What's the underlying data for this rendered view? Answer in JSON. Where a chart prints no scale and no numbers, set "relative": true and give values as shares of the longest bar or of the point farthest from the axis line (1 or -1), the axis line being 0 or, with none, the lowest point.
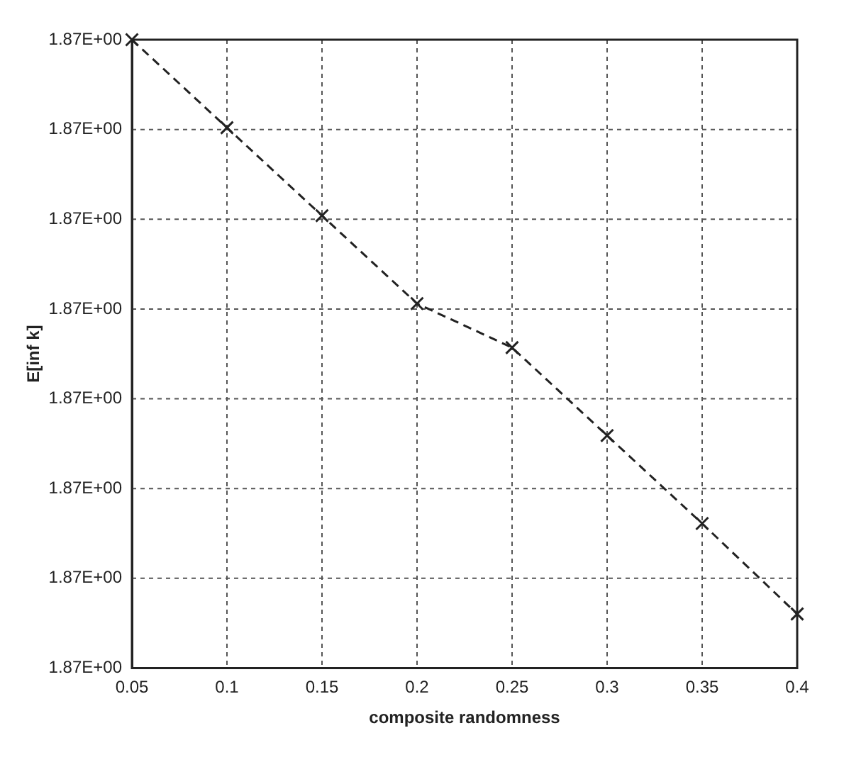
{
  "chart_data": {
    "type": "line",
    "relative": true,
    "xlabel": "composite randomness",
    "ylabel": "E[inf k]",
    "x": [
      0.05,
      0.1,
      0.15,
      0.2,
      0.25,
      0.3,
      0.35,
      0.4
    ],
    "series": [
      {
        "color": "#222222",
        "values": [
          1,
          0.86,
          0.72,
          0.58,
          0.51,
          0.37,
          0.23,
          0.086
        ]
      }
    ],
    "xlim": [
      0.05,
      0.4
    ],
    "xticks": [
      0.05,
      0.1,
      0.15,
      0.2,
      0.25,
      0.3,
      0.35,
      0.4
    ],
    "annotations": [
      "1.87E+00",
      "1.87E+00",
      "1.87E+00",
      "1.87E+00",
      "1.87E+00",
      "1.87E+00",
      "1.87E+00",
      "1.87E+00"
    ],
    "grid": true,
    "legend": false,
    "marker": "cross",
    "line_style": "dashed"
  }
}
